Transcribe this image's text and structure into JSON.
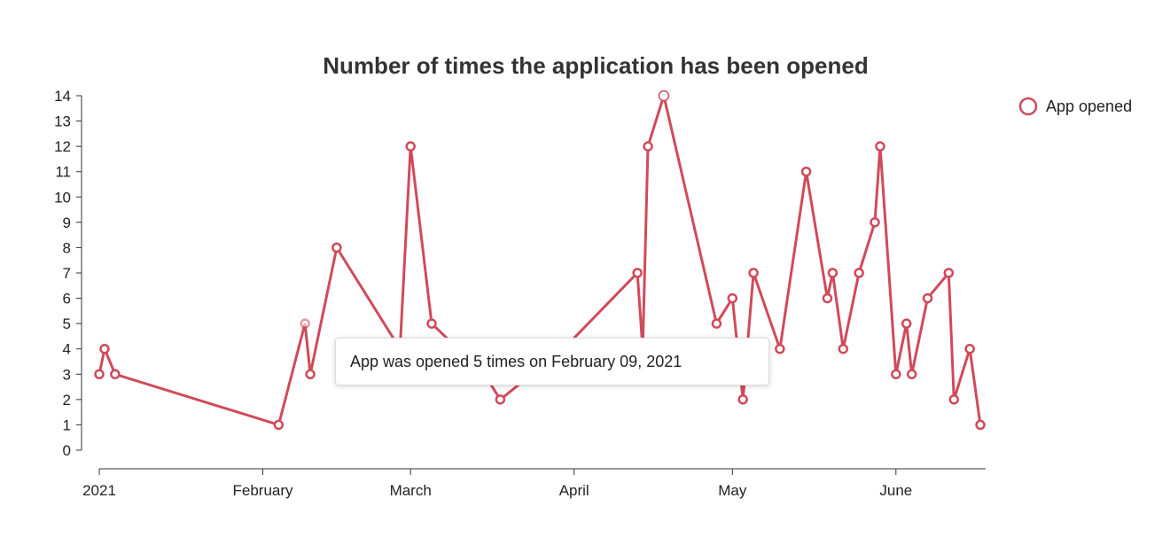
{
  "chart_data": {
    "type": "line",
    "title": "Number of times the application has been opened",
    "xlabel": "",
    "ylabel": "",
    "ylim": [
      0,
      14
    ],
    "y_ticks": [
      0,
      1,
      2,
      3,
      4,
      5,
      6,
      7,
      8,
      9,
      10,
      11,
      12,
      13,
      14
    ],
    "x_ticks": [
      {
        "date": "2021-01-01",
        "label": "2021"
      },
      {
        "date": "2021-02-01",
        "label": "February"
      },
      {
        "date": "2021-03-01",
        "label": "March"
      },
      {
        "date": "2021-04-01",
        "label": "April"
      },
      {
        "date": "2021-05-01",
        "label": "May"
      },
      {
        "date": "2021-06-01",
        "label": "June"
      }
    ],
    "xlim": [
      "2021-01-01",
      "2021-06-18"
    ],
    "grid": false,
    "legend_position": "top-right",
    "color": "#d04a5a",
    "series": [
      {
        "name": "App opened",
        "x": [
          "2021-01-01",
          "2021-01-02",
          "2021-01-04",
          "2021-02-04",
          "2021-02-09",
          "2021-02-10",
          "2021-02-15",
          "2021-02-27",
          "2021-03-01",
          "2021-03-05",
          "2021-03-15",
          "2021-03-18",
          "2021-03-30",
          "2021-04-13",
          "2021-04-14",
          "2021-04-15",
          "2021-04-18",
          "2021-04-28",
          "2021-05-01",
          "2021-05-03",
          "2021-05-05",
          "2021-05-10",
          "2021-05-15",
          "2021-05-19",
          "2021-05-20",
          "2021-05-22",
          "2021-05-25",
          "2021-05-28",
          "2021-05-29",
          "2021-06-01",
          "2021-06-03",
          "2021-06-04",
          "2021-06-07",
          "2021-06-11",
          "2021-06-12",
          "2021-06-15",
          "2021-06-17"
        ],
        "y": [
          3,
          4,
          3,
          1,
          5,
          3,
          8,
          4,
          12,
          5,
          3,
          2,
          4,
          7,
          4,
          12,
          14,
          5,
          6,
          2,
          7,
          4,
          11,
          6,
          7,
          4,
          7,
          9,
          12,
          3,
          5,
          3,
          6,
          7,
          2,
          4,
          1
        ]
      }
    ]
  },
  "tooltip": {
    "text": "App was opened 5 times on February 09, 2021"
  }
}
